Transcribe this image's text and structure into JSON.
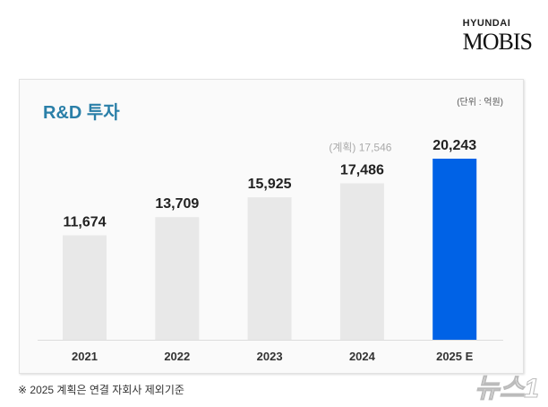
{
  "logo": {
    "top": "HYUNDAI",
    "main": "MOBIS"
  },
  "chart_data": {
    "type": "bar",
    "title": "R&D 투자",
    "unit": "(단위 : 억원)",
    "categories": [
      "2021",
      "2022",
      "2023",
      "2024",
      "2025 E"
    ],
    "values": [
      11674,
      13709,
      15925,
      17486,
      20243
    ],
    "value_labels": [
      "11,674",
      "13,709",
      "15,925",
      "17,486",
      "20,243"
    ],
    "annotation": "(계획) 17,546",
    "colors": {
      "default": "#e8e8e8",
      "highlight": "#0062e6",
      "title": "#2a7fa8"
    },
    "grid": false,
    "ylim": [
      0,
      20243
    ]
  },
  "footnote": "※ 2025 계획은 연결 자회사 제외기준",
  "watermark": "뉴스1"
}
